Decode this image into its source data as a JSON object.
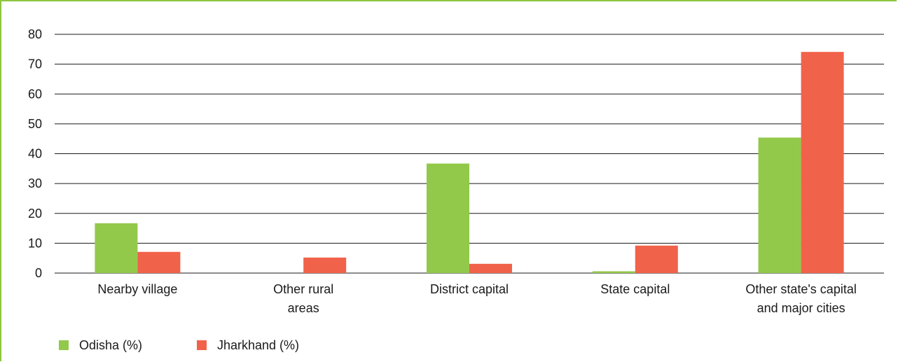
{
  "chart_data": {
    "type": "bar",
    "categories": [
      [
        "Nearby village"
      ],
      [
        "Other rural",
        "areas"
      ],
      [
        "District capital"
      ],
      [
        "State capital"
      ],
      [
        "Other state's capital",
        "and major cities"
      ]
    ],
    "series": [
      {
        "name": "Odisha (%)",
        "color": "#92c94a",
        "values": [
          16.7,
          0,
          36.7,
          0.6,
          45.4
        ]
      },
      {
        "name": "Jharkhand (%)",
        "color": "#f1624a",
        "values": [
          7.1,
          5.2,
          3.1,
          9.2,
          74.1
        ]
      }
    ],
    "title": "",
    "xlabel": "",
    "ylabel": "",
    "ylim": [
      0,
      80
    ],
    "yticks": [
      0,
      10,
      20,
      30,
      40,
      50,
      60,
      70,
      80
    ],
    "grid": true,
    "legend": "bottom-left"
  }
}
